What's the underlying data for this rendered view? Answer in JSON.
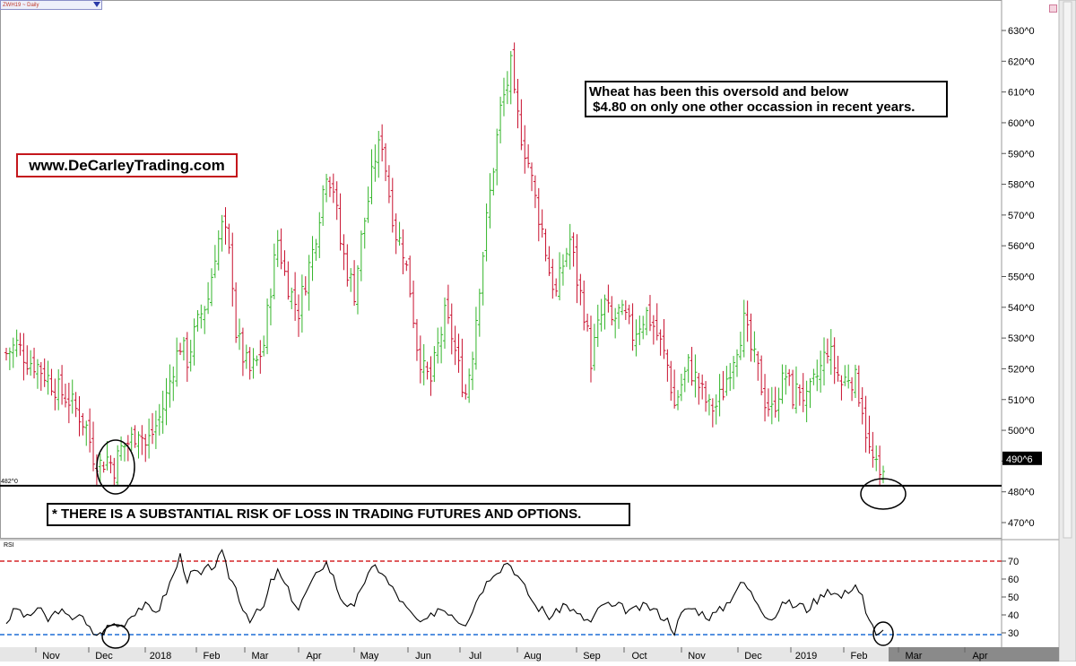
{
  "header": {
    "symbol_label": "ZWH19 ~ Daily"
  },
  "annotations": {
    "website": "www.DeCarleyTrading.com",
    "oversold_line1": "Wheat has been this oversold and below",
    "oversold_line2": " $4.80 on only one other occassion in recent years.",
    "risk_disclaimer": "* THERE IS A SUBSTANTIAL RISK OF LOSS IN TRADING FUTURES AND OPTIONS."
  },
  "colors": {
    "up_bar": "#33b52a",
    "down_bar": "#c8102e",
    "rsi_upper": "#d62728",
    "rsi_lower": "#1f6fd6",
    "annotation_border": "#c4161c"
  },
  "chart_data": [
    {
      "type": "ohlc",
      "title": "ZWH19 ~ Daily",
      "y_ticks": [
        "630^0",
        "620^0",
        "610^0",
        "600^0",
        "590^0",
        "580^0",
        "570^0",
        "560^0",
        "550^0",
        "540^0",
        "530^0",
        "520^0",
        "510^0",
        "500^0",
        "490^0",
        "480^0",
        "470^0"
      ],
      "ylim": [
        466,
        636
      ],
      "last_price_label": "490^6",
      "last_price": 490.75,
      "support_line_label": "482^0",
      "support_line": 482,
      "x_ticks": [
        "Nov",
        "Dec",
        "2018",
        "Feb",
        "Mar",
        "Apr",
        "May",
        "Jun",
        "Jul",
        "Aug",
        "Sep",
        "Oct",
        "Nov",
        "Dec",
        "2019",
        "Feb",
        "Mar",
        "Apr"
      ],
      "close_path": [
        [
          0,
          525
        ],
        [
          3,
          528
        ],
        [
          6,
          523
        ],
        [
          9,
          521
        ],
        [
          12,
          517
        ],
        [
          15,
          513
        ],
        [
          18,
          510
        ],
        [
          21,
          505
        ],
        [
          23,
          501
        ],
        [
          25,
          492
        ],
        [
          27,
          489
        ],
        [
          29,
          491
        ],
        [
          31,
          488
        ],
        [
          33,
          494
        ],
        [
          36,
          497
        ],
        [
          38,
          501
        ],
        [
          40,
          495
        ],
        [
          42,
          499
        ],
        [
          44,
          504
        ],
        [
          46,
          511
        ],
        [
          48,
          521
        ],
        [
          50,
          528
        ],
        [
          52,
          523
        ],
        [
          54,
          531
        ],
        [
          56,
          538
        ],
        [
          58,
          543
        ],
        [
          60,
          558
        ],
        [
          62,
          566
        ],
        [
          63,
          563
        ],
        [
          64,
          557
        ],
        [
          65,
          549
        ],
        [
          66,
          532
        ],
        [
          68,
          524
        ],
        [
          70,
          519
        ],
        [
          72,
          522
        ],
        [
          74,
          528
        ],
        [
          76,
          547
        ],
        [
          78,
          562
        ],
        [
          80,
          551
        ],
        [
          82,
          544
        ],
        [
          84,
          539
        ],
        [
          86,
          549
        ],
        [
          88,
          558
        ],
        [
          90,
          571
        ],
        [
          92,
          585
        ],
        [
          94,
          579
        ],
        [
          96,
          561
        ],
        [
          98,
          552
        ],
        [
          100,
          545
        ],
        [
          102,
          562
        ],
        [
          104,
          575
        ],
        [
          106,
          589
        ],
        [
          108,
          594
        ],
        [
          110,
          577
        ],
        [
          112,
          564
        ],
        [
          114,
          559
        ],
        [
          116,
          546
        ],
        [
          118,
          528
        ],
        [
          120,
          519
        ],
        [
          122,
          516
        ],
        [
          124,
          527
        ],
        [
          126,
          537
        ],
        [
          128,
          531
        ],
        [
          130,
          520
        ],
        [
          132,
          512
        ],
        [
          134,
          526
        ],
        [
          136,
          548
        ],
        [
          138,
          568
        ],
        [
          140,
          586
        ],
        [
          142,
          604
        ],
        [
          144,
          613
        ],
        [
          145,
          618
        ],
        [
          146,
          607
        ],
        [
          148,
          596
        ],
        [
          150,
          587
        ],
        [
          152,
          575
        ],
        [
          154,
          565
        ],
        [
          156,
          552
        ],
        [
          158,
          544
        ],
        [
          160,
          554
        ],
        [
          162,
          562
        ],
        [
          164,
          549
        ],
        [
          166,
          539
        ],
        [
          168,
          523
        ],
        [
          170,
          533
        ],
        [
          172,
          541
        ],
        [
          174,
          535
        ],
        [
          176,
          538
        ],
        [
          178,
          536
        ],
        [
          180,
          531
        ],
        [
          182,
          535
        ],
        [
          184,
          538
        ],
        [
          186,
          534
        ],
        [
          188,
          528
        ],
        [
          190,
          521
        ],
        [
          192,
          508
        ],
        [
          194,
          515
        ],
        [
          196,
          521
        ],
        [
          198,
          517
        ],
        [
          200,
          512
        ],
        [
          202,
          507
        ],
        [
          204,
          508
        ],
        [
          206,
          513
        ],
        [
          208,
          521
        ],
        [
          210,
          528
        ],
        [
          212,
          535
        ],
        [
          214,
          526
        ],
        [
          216,
          519
        ],
        [
          218,
          510
        ],
        [
          220,
          506
        ],
        [
          222,
          513
        ],
        [
          224,
          518
        ],
        [
          226,
          511
        ],
        [
          228,
          514
        ],
        [
          230,
          509
        ],
        [
          232,
          515
        ],
        [
          234,
          520
        ],
        [
          236,
          527
        ],
        [
          238,
          521
        ],
        [
          240,
          515
        ],
        [
          242,
          518
        ],
        [
          244,
          516
        ],
        [
          246,
          508
        ],
        [
          247,
          500
        ],
        [
          248,
          493
        ],
        [
          250,
          487
        ],
        [
          251,
          484
        ],
        [
          252,
          490
        ]
      ]
    },
    {
      "type": "line",
      "title": "RSI",
      "y_ticks": [
        "70",
        "60",
        "50",
        "40",
        "30"
      ],
      "reference_lines": [
        70,
        29
      ],
      "ylim": [
        26,
        76
      ],
      "rsi_path": [
        [
          0,
          36
        ],
        [
          3,
          44
        ],
        [
          6,
          38
        ],
        [
          9,
          44
        ],
        [
          12,
          37
        ],
        [
          15,
          43
        ],
        [
          18,
          38
        ],
        [
          21,
          41
        ],
        [
          23,
          34
        ],
        [
          25,
          30
        ],
        [
          27,
          29
        ],
        [
          29,
          33
        ],
        [
          31,
          35
        ],
        [
          33,
          34
        ],
        [
          36,
          40
        ],
        [
          38,
          44
        ],
        [
          40,
          45
        ],
        [
          42,
          42
        ],
        [
          44,
          44
        ],
        [
          46,
          53
        ],
        [
          48,
          62
        ],
        [
          50,
          73
        ],
        [
          52,
          60
        ],
        [
          54,
          64
        ],
        [
          56,
          62
        ],
        [
          58,
          66
        ],
        [
          60,
          68
        ],
        [
          62,
          74
        ],
        [
          64,
          62
        ],
        [
          66,
          55
        ],
        [
          68,
          44
        ],
        [
          70,
          38
        ],
        [
          72,
          41
        ],
        [
          74,
          44
        ],
        [
          76,
          58
        ],
        [
          78,
          64
        ],
        [
          80,
          57
        ],
        [
          82,
          50
        ],
        [
          84,
          43
        ],
        [
          86,
          52
        ],
        [
          88,
          58
        ],
        [
          90,
          66
        ],
        [
          92,
          69
        ],
        [
          94,
          61
        ],
        [
          96,
          50
        ],
        [
          98,
          46
        ],
        [
          100,
          43
        ],
        [
          102,
          56
        ],
        [
          104,
          62
        ],
        [
          106,
          67
        ],
        [
          108,
          64
        ],
        [
          110,
          57
        ],
        [
          112,
          52
        ],
        [
          114,
          46
        ],
        [
          116,
          41
        ],
        [
          118,
          37
        ],
        [
          120,
          35
        ],
        [
          122,
          39
        ],
        [
          124,
          44
        ],
        [
          126,
          43
        ],
        [
          128,
          41
        ],
        [
          130,
          37
        ],
        [
          132,
          36
        ],
        [
          134,
          43
        ],
        [
          136,
          52
        ],
        [
          138,
          58
        ],
        [
          140,
          64
        ],
        [
          142,
          66
        ],
        [
          144,
          70
        ],
        [
          146,
          65
        ],
        [
          148,
          58
        ],
        [
          150,
          52
        ],
        [
          152,
          45
        ],
        [
          154,
          43
        ],
        [
          156,
          39
        ],
        [
          158,
          41
        ],
        [
          160,
          46
        ],
        [
          162,
          44
        ],
        [
          164,
          40
        ],
        [
          166,
          38
        ],
        [
          168,
          36
        ],
        [
          170,
          42
        ],
        [
          172,
          47
        ],
        [
          174,
          44
        ],
        [
          176,
          45
        ],
        [
          178,
          43
        ],
        [
          180,
          42
        ],
        [
          182,
          44
        ],
        [
          184,
          45
        ],
        [
          186,
          43
        ],
        [
          188,
          40
        ],
        [
          190,
          37
        ],
        [
          192,
          31
        ],
        [
          194,
          40
        ],
        [
          196,
          44
        ],
        [
          198,
          43
        ],
        [
          200,
          41
        ],
        [
          202,
          39
        ],
        [
          204,
          41
        ],
        [
          206,
          44
        ],
        [
          208,
          49
        ],
        [
          210,
          55
        ],
        [
          212,
          58
        ],
        [
          214,
          52
        ],
        [
          216,
          47
        ],
        [
          218,
          41
        ],
        [
          220,
          38
        ],
        [
          222,
          42
        ],
        [
          224,
          48
        ],
        [
          226,
          45
        ],
        [
          228,
          46
        ],
        [
          230,
          43
        ],
        [
          232,
          47
        ],
        [
          234,
          50
        ],
        [
          236,
          55
        ],
        [
          238,
          52
        ],
        [
          240,
          50
        ],
        [
          242,
          54
        ],
        [
          244,
          57
        ],
        [
          246,
          50
        ],
        [
          247,
          40
        ],
        [
          248,
          36
        ],
        [
          250,
          31
        ],
        [
          251,
          29
        ],
        [
          252,
          33
        ]
      ]
    }
  ]
}
